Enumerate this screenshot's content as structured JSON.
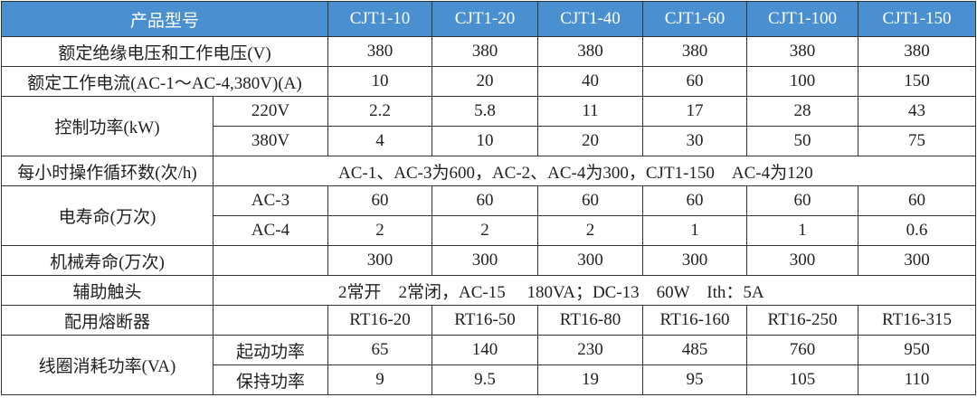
{
  "header": {
    "label": "产品型号",
    "models": [
      "CJT1-10",
      "CJT1-20",
      "CJT1-40",
      "CJT1-60",
      "CJT1-100",
      "CJT1-150"
    ]
  },
  "colors": {
    "header_bg": "#4a90d0",
    "header_text": "#ffffff",
    "border": "#333333"
  },
  "rows": {
    "insulation_voltage": {
      "label": "额定绝缘电压和工作电压(V)",
      "values": [
        "380",
        "380",
        "380",
        "380",
        "380",
        "380"
      ]
    },
    "rated_current": {
      "label": "额定工作电流(AC-1～AC-4,380V)(A)",
      "values": [
        "10",
        "20",
        "40",
        "60",
        "100",
        "150"
      ]
    },
    "control_power": {
      "label": "控制功率(kW)",
      "sub": [
        {
          "label": "220V",
          "values": [
            "2.2",
            "5.8",
            "11",
            "17",
            "28",
            "43"
          ]
        },
        {
          "label": "380V",
          "values": [
            "4",
            "10",
            "20",
            "30",
            "50",
            "75"
          ]
        }
      ]
    },
    "operations_per_hour": {
      "label": "每小时操作循环数(次/h)",
      "value": "AC-1、AC-3为600，AC-2、AC-4为300，CJT1-150　AC-4为120"
    },
    "electrical_life": {
      "label": "电寿命(万次)",
      "sub": [
        {
          "label": "AC-3",
          "values": [
            "60",
            "60",
            "60",
            "60",
            "60",
            "60"
          ]
        },
        {
          "label": "AC-4",
          "values": [
            "2",
            "2",
            "2",
            "1",
            "1",
            "0.6"
          ]
        }
      ]
    },
    "mechanical_life": {
      "label": "机械寿命(万次)",
      "values": [
        "300",
        "300",
        "300",
        "300",
        "300",
        "300"
      ]
    },
    "aux_contacts": {
      "label": "辅助触头",
      "value": "2常开　2常闭，AC-15　 180VA；DC-13　60W　Ith：5A"
    },
    "fuse": {
      "label": "配用熔断器",
      "values": [
        "RT16-20",
        "RT16-50",
        "RT16-80",
        "RT16-160",
        "RT16-250",
        "RT16-315"
      ]
    },
    "coil_power": {
      "label": "线圈消耗功率(VA)",
      "sub": [
        {
          "label": "起动功率",
          "values": [
            "65",
            "140",
            "230",
            "485",
            "760",
            "950"
          ]
        },
        {
          "label": "保持功率",
          "values": [
            "9",
            "9.5",
            "19",
            "95",
            "105",
            "110"
          ]
        }
      ]
    }
  }
}
